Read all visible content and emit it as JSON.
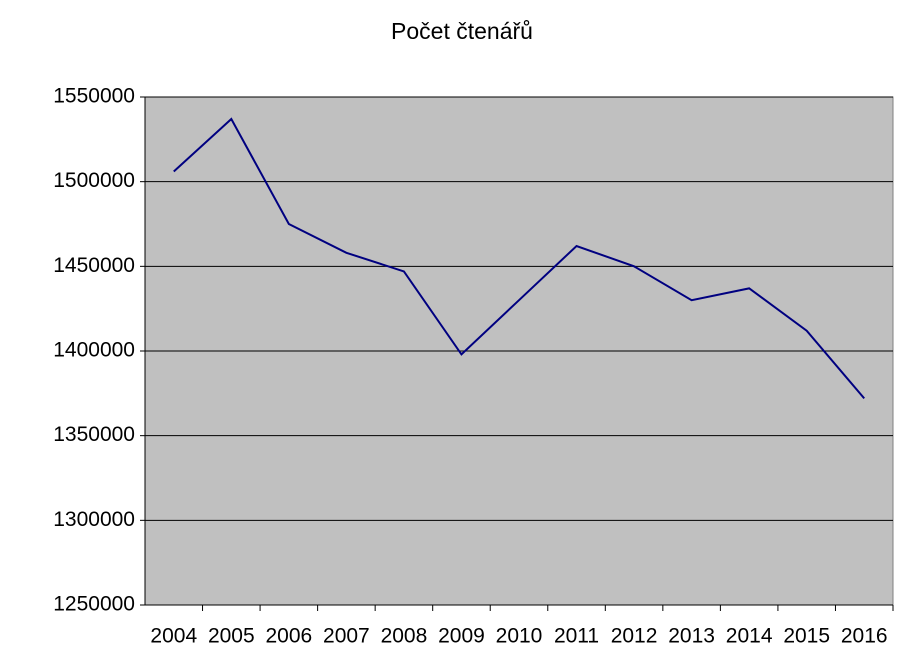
{
  "chart_data": {
    "type": "line",
    "title": "Počet čtenářů",
    "categories": [
      "2004",
      "2005",
      "2006",
      "2007",
      "2008",
      "2009",
      "2010",
      "2011",
      "2012",
      "2013",
      "2014",
      "2015",
      "2016"
    ],
    "series": [
      {
        "name": "Počet čtenářů",
        "color": "#000080",
        "values": [
          1506000,
          1537000,
          1475000,
          1458000,
          1447000,
          1398000,
          1430000,
          1462000,
          1450000,
          1430000,
          1437000,
          1412000,
          1372000
        ]
      }
    ],
    "ylim": [
      1250000,
      1550000
    ],
    "yticks": [
      1250000,
      1300000,
      1350000,
      1400000,
      1450000,
      1500000,
      1550000
    ],
    "grid": true,
    "plot_background": "#c0c0c0"
  }
}
